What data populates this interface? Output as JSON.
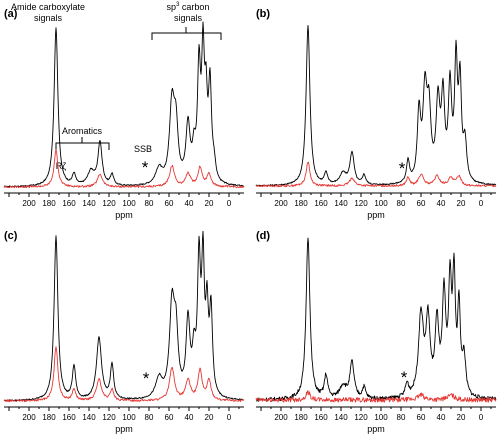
{
  "chart_data": [
    {
      "type": "line",
      "panel_label": "(a)",
      "xlabel": "ppm",
      "xlim": [
        225,
        -15
      ],
      "x_ticks": [
        200,
        180,
        160,
        140,
        120,
        100,
        80,
        60,
        40,
        20,
        0
      ],
      "annotations": {
        "amide": "Amide carboxylate\nsignals",
        "sp3_pre": "sp",
        "sp3_sup": "3",
        "sp3_post": " carbon",
        "sp3_line2": "signals",
        "aromatics": "Aromatics",
        "rz": "Rζ",
        "ssb": "SSB",
        "star": "*"
      },
      "series": [
        {
          "color": "#000000",
          "peaks": [
            [
              173,
              1.0,
              2.3
            ],
            [
              155,
              0.07,
              2
            ],
            [
              138,
              0.09,
              4
            ],
            [
              129,
              0.27,
              2.5
            ],
            [
              117,
              0.07,
              2
            ],
            [
              70,
              0.1,
              4
            ],
            [
              57,
              0.5,
              3
            ],
            [
              53,
              0.32,
              2.5
            ],
            [
              41,
              0.36,
              2.5
            ],
            [
              35,
              0.18,
              2
            ],
            [
              30,
              0.7,
              1.8
            ],
            [
              26,
              0.75,
              1.6
            ],
            [
              23,
              0.45,
              1.6
            ],
            [
              19,
              0.6,
              1.8
            ],
            [
              15,
              0.1,
              2
            ]
          ]
        },
        {
          "color": "#e53935",
          "peaks": [
            [
              173,
              0.23,
              2.3
            ],
            [
              129,
              0.08,
              3
            ],
            [
              57,
              0.13,
              3
            ],
            [
              41,
              0.08,
              3
            ],
            [
              29,
              0.12,
              2.5
            ],
            [
              20,
              0.08,
              2.5
            ]
          ]
        }
      ]
    },
    {
      "type": "line",
      "panel_label": "(b)",
      "xlabel": "ppm",
      "xlim": [
        225,
        -15
      ],
      "x_ticks": [
        200,
        180,
        160,
        140,
        120,
        100,
        80,
        60,
        40,
        20,
        0
      ],
      "annotations": {
        "star": "*"
      },
      "series": [
        {
          "color": "#000000",
          "peaks": [
            [
              173,
              1.0,
              2.3
            ],
            [
              155,
              0.07,
              2
            ],
            [
              138,
              0.07,
              4
            ],
            [
              129,
              0.2,
              2.5
            ],
            [
              117,
              0.06,
              2
            ],
            [
              73,
              0.14,
              1.8
            ],
            [
              62,
              0.42,
              2
            ],
            [
              56,
              0.55,
              2.5
            ],
            [
              52,
              0.4,
              2.2
            ],
            [
              43,
              0.48,
              2.3
            ],
            [
              38,
              0.5,
              2
            ],
            [
              31,
              0.58,
              2
            ],
            [
              25,
              0.72,
              1.7
            ],
            [
              21,
              0.6,
              1.7
            ],
            [
              16,
              0.24,
              2
            ]
          ]
        },
        {
          "color": "#e53935",
          "peaks": [
            [
              173,
              0.15,
              2.3
            ],
            [
              129,
              0.05,
              3
            ],
            [
              73,
              0.05,
              2
            ],
            [
              60,
              0.07,
              3
            ],
            [
              44,
              0.06,
              3
            ],
            [
              30,
              0.05,
              3
            ],
            [
              22,
              0.06,
              2.5
            ]
          ]
        }
      ]
    },
    {
      "type": "line",
      "panel_label": "(c)",
      "xlabel": "ppm",
      "xlim": [
        225,
        -15
      ],
      "x_ticks": [
        200,
        180,
        160,
        140,
        120,
        100,
        80,
        60,
        40,
        20,
        0
      ],
      "annotations": {
        "star": "*"
      },
      "series": [
        {
          "color": "#000000",
          "peaks": [
            [
              173,
              1.0,
              2.3
            ],
            [
              155,
              0.2,
              2
            ],
            [
              130,
              0.38,
              3
            ],
            [
              117,
              0.21,
              2
            ],
            [
              70,
              0.12,
              4
            ],
            [
              57,
              0.55,
              3
            ],
            [
              53,
              0.35,
              2.5
            ],
            [
              41,
              0.46,
              2.3
            ],
            [
              35,
              0.24,
              2
            ],
            [
              30,
              0.8,
              1.8
            ],
            [
              26,
              0.78,
              1.6
            ],
            [
              22,
              0.48,
              1.6
            ],
            [
              18,
              0.52,
              1.8
            ]
          ]
        },
        {
          "color": "#e53935",
          "peaks": [
            [
              173,
              0.33,
              2.3
            ],
            [
              155,
              0.07,
              2
            ],
            [
              130,
              0.13,
              3
            ],
            [
              117,
              0.07,
              2
            ],
            [
              57,
              0.2,
              3
            ],
            [
              41,
              0.12,
              3
            ],
            [
              29,
              0.18,
              2.5
            ],
            [
              20,
              0.12,
              2.5
            ]
          ]
        }
      ]
    },
    {
      "type": "line",
      "panel_label": "(d)",
      "xlabel": "ppm",
      "xlim": [
        225,
        -15
      ],
      "x_ticks": [
        200,
        180,
        160,
        140,
        120,
        100,
        80,
        60,
        40,
        20,
        0
      ],
      "annotations": {
        "star": "*"
      },
      "series": [
        {
          "color": "#000000",
          "peaks": [
            [
              173,
              1.0,
              2.3
            ],
            [
              155,
              0.14,
              2
            ],
            [
              138,
              0.08,
              4
            ],
            [
              129,
              0.22,
              2.5
            ],
            [
              117,
              0.07,
              2
            ],
            [
              74,
              0.08,
              2
            ],
            [
              60,
              0.5,
              3
            ],
            [
              53,
              0.45,
              2.5
            ],
            [
              44,
              0.44,
              2.3
            ],
            [
              37,
              0.6,
              2
            ],
            [
              31,
              0.66,
              1.8
            ],
            [
              27,
              0.7,
              1.6
            ],
            [
              22,
              0.54,
              1.6
            ],
            [
              17,
              0.24,
              2
            ]
          ]
        },
        {
          "color": "#e53935",
          "peaks": [
            [
              173,
              0.05,
              2.5
            ],
            [
              60,
              0.03,
              4
            ],
            [
              30,
              0.03,
              4
            ]
          ]
        }
      ]
    }
  ]
}
